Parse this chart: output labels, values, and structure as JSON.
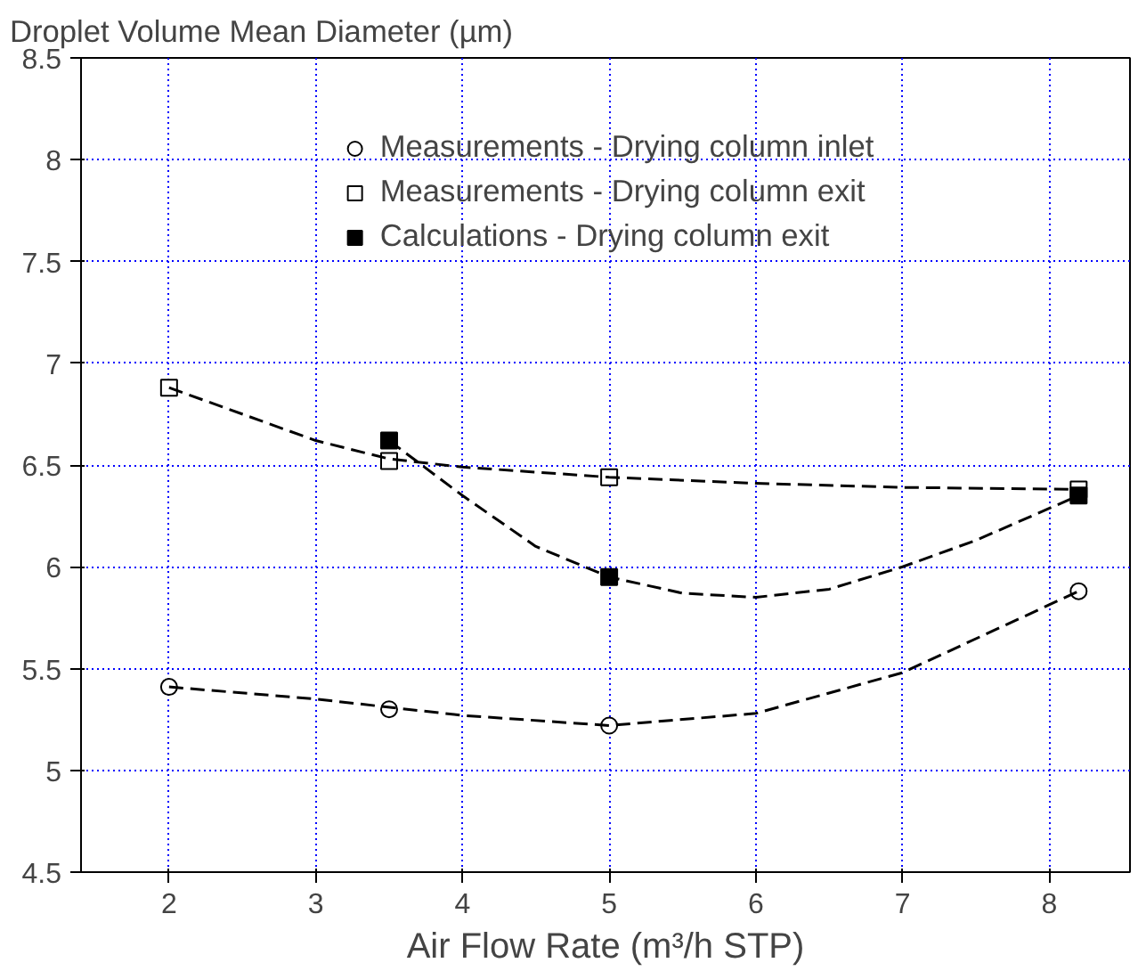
{
  "chart_data": {
    "type": "scatter",
    "ylabel": "Droplet Volume Mean Diameter (µm)",
    "xlabel": "Air Flow Rate (m³/h STP)",
    "xlim": [
      1.4,
      8.55
    ],
    "ylim": [
      4.5,
      8.5
    ],
    "xticks": [
      2,
      3,
      4,
      5,
      6,
      7,
      8
    ],
    "yticks": [
      4.5,
      5,
      5.5,
      6,
      6.5,
      7,
      7.5,
      8,
      8.5
    ],
    "grid": true,
    "legend": "top",
    "series": [
      {
        "name": "Measurements - Drying column inlet",
        "color": "#000000",
        "marker": "circle",
        "x": [
          2,
          3.5,
          5,
          8.2
        ],
        "values": [
          5.41,
          5.3,
          5.22,
          5.88
        ]
      },
      {
        "name": "Measurements - Drying column exit",
        "color": "#000000",
        "marker": "square",
        "x": [
          2,
          3.5,
          5,
          8.2
        ],
        "values": [
          6.88,
          6.52,
          6.44,
          6.38
        ]
      },
      {
        "name": "Calculations - Drying column exit",
        "color": "#000000",
        "marker": "square",
        "x": [
          3.5,
          5,
          8.2
        ],
        "values": [
          6.62,
          5.95,
          6.35
        ]
      },
      {
        "type": "line",
        "line_style": "dashed",
        "color": "#000000",
        "x": [
          2,
          3,
          4,
          5,
          6,
          7,
          8.2
        ],
        "values": [
          5.41,
          5.35,
          5.27,
          5.22,
          5.28,
          5.48,
          5.88
        ]
      },
      {
        "type": "line",
        "line_style": "dashed",
        "color": "#000000",
        "x": [
          2,
          3,
          3.5,
          4,
          5,
          6,
          7,
          8.2
        ],
        "values": [
          6.88,
          6.62,
          6.53,
          6.49,
          6.44,
          6.41,
          6.39,
          6.38
        ]
      },
      {
        "type": "line",
        "line_style": "dashed",
        "color": "#000000",
        "x": [
          3.5,
          4,
          4.5,
          5,
          5.5,
          6,
          6.5,
          7,
          7.5,
          8.2
        ],
        "values": [
          6.62,
          6.35,
          6.1,
          5.95,
          5.87,
          5.85,
          5.89,
          6.0,
          6.13,
          6.35
        ]
      }
    ]
  }
}
